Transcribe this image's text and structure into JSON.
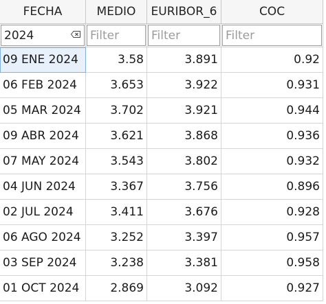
{
  "columns": [
    {
      "header": "FECHA",
      "filter_value": "2024",
      "filter_placeholder": "Filter"
    },
    {
      "header": "MEDIO",
      "filter_value": "",
      "filter_placeholder": "Filter"
    },
    {
      "header": "EURIBOR_6",
      "filter_value": "",
      "filter_placeholder": "Filter"
    },
    {
      "header": "COC",
      "filter_value": "",
      "filter_placeholder": "Filter"
    }
  ],
  "rows": [
    {
      "fecha": "09 ENE 2024",
      "medio": "3.58",
      "euribor_6": "3.891",
      "coc": "0.92"
    },
    {
      "fecha": "06 FEB 2024",
      "medio": "3.653",
      "euribor_6": "3.922",
      "coc": "0.931"
    },
    {
      "fecha": "05 MAR 2024",
      "medio": "3.702",
      "euribor_6": "3.921",
      "coc": "0.944"
    },
    {
      "fecha": "09 ABR 2024",
      "medio": "3.621",
      "euribor_6": "3.868",
      "coc": "0.936"
    },
    {
      "fecha": "07 MAY 2024",
      "medio": "3.543",
      "euribor_6": "3.802",
      "coc": "0.932"
    },
    {
      "fecha": "04 JUN 2024",
      "medio": "3.367",
      "euribor_6": "3.756",
      "coc": "0.896"
    },
    {
      "fecha": "02 JUL 2024",
      "medio": "3.411",
      "euribor_6": "3.676",
      "coc": "0.928"
    },
    {
      "fecha": "06 AGO 2024",
      "medio": "3.252",
      "euribor_6": "3.397",
      "coc": "0.957"
    },
    {
      "fecha": "03 SEP 2024",
      "medio": "3.238",
      "euribor_6": "3.381",
      "coc": "0.958"
    },
    {
      "fecha": "01 OCT 2024",
      "medio": "2.869",
      "euribor_6": "3.092",
      "coc": "0.927"
    }
  ],
  "selected_row": 0,
  "icons": {
    "filter_clear": "clear-filter-icon"
  }
}
